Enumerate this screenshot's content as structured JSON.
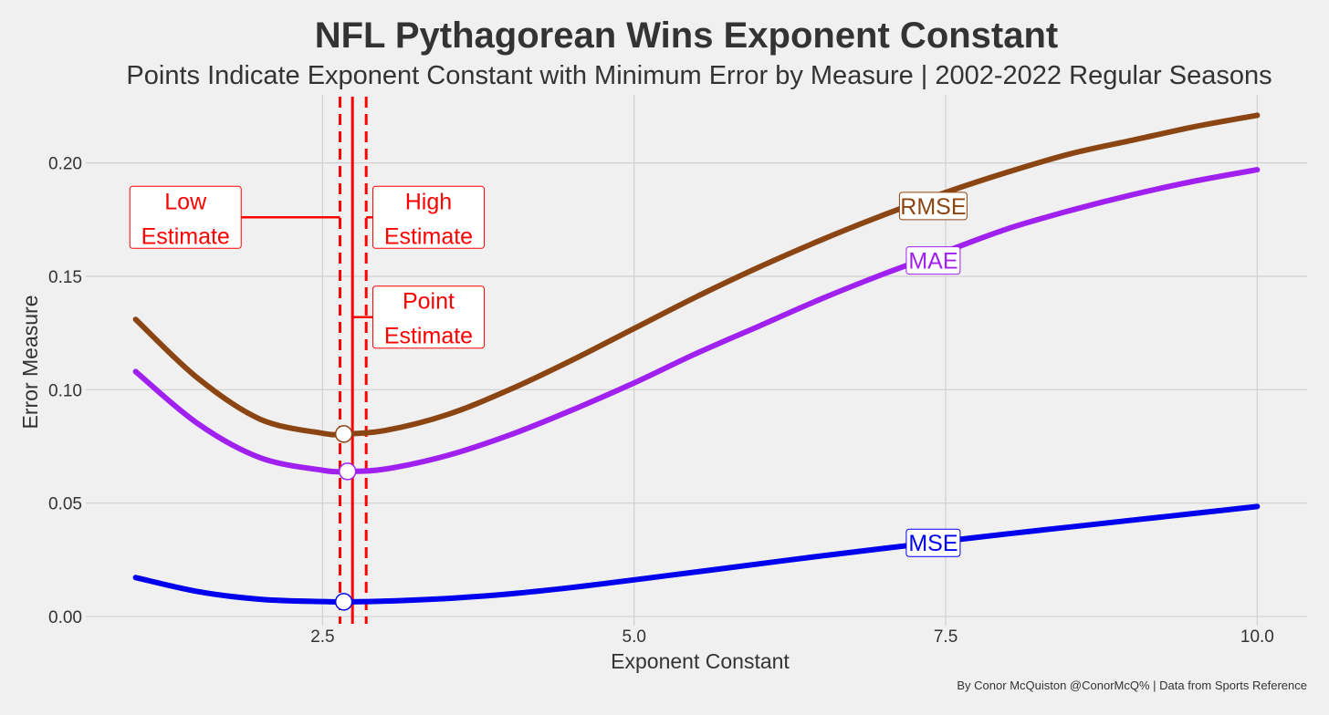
{
  "chart_data": {
    "type": "line",
    "title": "NFL Pythagorean Wins Exponent Constant",
    "subtitle": "Points Indicate Exponent Constant with Minimum Error by Measure | 2002-2022 Regular Seasons",
    "xlabel": "Exponent Constant",
    "ylabel": "Error Measure",
    "caption": "By Conor McQuiston @ConorMcQ% | Data from Sports Reference",
    "xlim": [
      0.6,
      10.4
    ],
    "ylim": [
      -0.004,
      0.23
    ],
    "x_ticks": [
      2.5,
      5.0,
      7.5,
      10.0
    ],
    "x_tick_labels": [
      "2.5",
      "5.0",
      "7.5",
      "10.0"
    ],
    "y_ticks": [
      0.0,
      0.05,
      0.1,
      0.15,
      0.2
    ],
    "y_tick_labels": [
      "0.00",
      "0.05",
      "0.10",
      "0.15",
      "0.20"
    ],
    "grid": true,
    "series": [
      {
        "name": "RMSE",
        "color": "#8b4513",
        "x": [
          1.0,
          1.5,
          2.0,
          2.5,
          2.67,
          3.0,
          3.5,
          4.0,
          4.5,
          5.0,
          5.5,
          6.0,
          6.5,
          7.0,
          7.5,
          8.0,
          8.5,
          9.0,
          9.5,
          10.0
        ],
        "y": [
          0.131,
          0.105,
          0.087,
          0.0808,
          0.0805,
          0.082,
          0.089,
          0.1,
          0.113,
          0.127,
          0.141,
          0.154,
          0.166,
          0.177,
          0.187,
          0.196,
          0.204,
          0.21,
          0.216,
          0.221
        ],
        "min_point": {
          "x": 2.67,
          "y": 0.0805
        },
        "label_x": 7.4,
        "label_y": 0.181
      },
      {
        "name": "MAE",
        "color": "#a020f0",
        "x": [
          1.0,
          1.5,
          2.0,
          2.5,
          2.7,
          3.0,
          3.5,
          4.0,
          4.5,
          5.0,
          5.5,
          6.0,
          6.5,
          7.0,
          7.5,
          8.0,
          8.5,
          9.0,
          9.5,
          10.0
        ],
        "y": [
          0.108,
          0.085,
          0.07,
          0.0645,
          0.064,
          0.065,
          0.071,
          0.08,
          0.091,
          0.103,
          0.116,
          0.128,
          0.14,
          0.151,
          0.161,
          0.171,
          0.179,
          0.186,
          0.192,
          0.197
        ],
        "min_point": {
          "x": 2.7,
          "y": 0.064
        },
        "label_x": 7.4,
        "label_y": 0.157
      },
      {
        "name": "MSE",
        "color": "#0000ee",
        "x": [
          1.0,
          1.5,
          2.0,
          2.5,
          2.67,
          3.0,
          3.5,
          4.0,
          4.5,
          5.0,
          5.5,
          6.0,
          6.5,
          7.0,
          7.5,
          8.0,
          8.5,
          9.0,
          9.5,
          10.0
        ],
        "y": [
          0.0172,
          0.011,
          0.0076,
          0.0066,
          0.0065,
          0.0068,
          0.008,
          0.01,
          0.0128,
          0.0162,
          0.0197,
          0.0232,
          0.0267,
          0.03,
          0.0333,
          0.0365,
          0.0395,
          0.0425,
          0.0455,
          0.0485
        ],
        "min_point": {
          "x": 2.67,
          "y": 0.0065
        },
        "label_x": 7.4,
        "label_y": 0.0325
      }
    ],
    "reference_lines": [
      {
        "name": "Low Estimate",
        "x": 2.64,
        "style": "dashed",
        "color": "#ff0000"
      },
      {
        "name": "Point Estimate",
        "x": 2.74,
        "style": "solid",
        "color": "#ff0000"
      },
      {
        "name": "High Estimate",
        "x": 2.85,
        "style": "dashed",
        "color": "#ff0000"
      }
    ],
    "annotations": [
      {
        "name": "low",
        "lines": [
          "Low",
          "Estimate"
        ],
        "x": 1.4,
        "y": 0.176,
        "ref_x": 2.64,
        "side": "left"
      },
      {
        "name": "high",
        "lines": [
          "High",
          "Estimate"
        ],
        "x": 3.35,
        "y": 0.176,
        "ref_x": 2.85,
        "side": "right"
      },
      {
        "name": "point",
        "lines": [
          "Point",
          "Estimate"
        ],
        "x": 3.35,
        "y": 0.132,
        "ref_x": 2.74,
        "side": "right"
      }
    ]
  }
}
